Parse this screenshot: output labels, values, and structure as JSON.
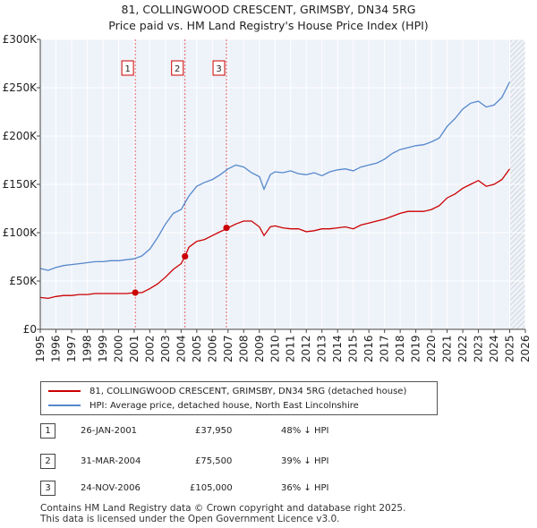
{
  "title_line1": "81, COLLINGWOOD CRESCENT, GRIMSBY, DN34 5RG",
  "title_line2": "Price paid vs. HM Land Registry's House Price Index (HPI)",
  "legend": {
    "property": "81, COLLINGWOOD CRESCENT, GRIMSBY, DN34 5RG (detached house)",
    "hpi": "HPI: Average price, detached house, North East Lincolnshire"
  },
  "transactions": [
    {
      "num": "1",
      "date": "26-JAN-2001",
      "price": "£37,950",
      "hpi_diff": "48% ↓ HPI"
    },
    {
      "num": "2",
      "date": "31-MAR-2004",
      "price": "£75,500",
      "hpi_diff": "39% ↓ HPI"
    },
    {
      "num": "3",
      "date": "24-NOV-2006",
      "price": "£105,000",
      "hpi_diff": "36% ↓ HPI"
    }
  ],
  "footer_line1": "Contains HM Land Registry data © Crown copyright and database right 2025.",
  "footer_line2": "This data is licensed under the Open Government Licence v3.0.",
  "chart_data": {
    "type": "line",
    "ylim": [
      0,
      300000
    ],
    "xlim": [
      1995,
      2026
    ],
    "y_ticks": [
      0,
      50000,
      100000,
      150000,
      200000,
      250000,
      300000
    ],
    "y_tick_labels": [
      "£0",
      "£50K",
      "£100K",
      "£150K",
      "£200K",
      "£250K",
      "£300K"
    ],
    "x_ticks": [
      1995,
      1996,
      1997,
      1998,
      1999,
      2000,
      2001,
      2002,
      2003,
      2004,
      2005,
      2006,
      2007,
      2008,
      2009,
      2010,
      2011,
      2012,
      2013,
      2014,
      2015,
      2016,
      2017,
      2018,
      2019,
      2020,
      2021,
      2022,
      2023,
      2024,
      2025,
      2026
    ],
    "grid": true,
    "future_hatch_from": 2025.0,
    "colors": {
      "property": "#cc0000",
      "hpi": "#5588cc",
      "marker_line": "#dd4444",
      "grid": "#dddddd",
      "bg": "#eef2f9"
    },
    "series": [
      {
        "key": "hpi",
        "x": [
          1995.0,
          1995.5,
          1996.0,
          1996.5,
          1997.0,
          1997.5,
          1998.0,
          1998.5,
          1999.0,
          1999.5,
          2000.0,
          2000.5,
          2001.0,
          2001.5,
          2002.0,
          2002.5,
          2003.0,
          2003.5,
          2004.0,
          2004.5,
          2005.0,
          2005.5,
          2006.0,
          2006.5,
          2007.0,
          2007.5,
          2008.0,
          2008.5,
          2009.0,
          2009.3,
          2009.7,
          2010.0,
          2010.5,
          2011.0,
          2011.5,
          2012.0,
          2012.5,
          2013.0,
          2013.5,
          2014.0,
          2014.5,
          2015.0,
          2015.5,
          2016.0,
          2016.5,
          2017.0,
          2017.5,
          2018.0,
          2018.5,
          2019.0,
          2019.5,
          2020.0,
          2020.5,
          2021.0,
          2021.5,
          2022.0,
          2022.5,
          2023.0,
          2023.5,
          2024.0,
          2024.5,
          2025.0
        ],
        "values": [
          63000,
          61000,
          64000,
          66000,
          67000,
          68000,
          69000,
          70000,
          70000,
          71000,
          71000,
          72000,
          73000,
          76000,
          83000,
          95000,
          109000,
          120000,
          124000,
          138000,
          148000,
          152000,
          155000,
          160000,
          166000,
          170000,
          168000,
          162000,
          158000,
          145000,
          160000,
          163000,
          162000,
          164000,
          161000,
          160000,
          162000,
          159000,
          163000,
          165000,
          166000,
          164000,
          168000,
          170000,
          172000,
          176000,
          182000,
          186000,
          188000,
          190000,
          191000,
          194000,
          198000,
          210000,
          218000,
          228000,
          234000,
          236000,
          230000,
          232000,
          240000,
          256000
        ]
      },
      {
        "key": "property",
        "x": [
          1995.0,
          1995.5,
          1996.0,
          1996.5,
          1997.0,
          1997.5,
          1998.0,
          1998.5,
          1999.0,
          1999.5,
          2000.0,
          2000.5,
          2001.07,
          2001.5,
          2002.0,
          2002.5,
          2003.0,
          2003.5,
          2004.0,
          2004.25,
          2004.5,
          2005.0,
          2005.5,
          2006.0,
          2006.5,
          2006.9,
          2007.0,
          2007.5,
          2008.0,
          2008.5,
          2009.0,
          2009.3,
          2009.7,
          2010.0,
          2010.5,
          2011.0,
          2011.5,
          2012.0,
          2012.5,
          2013.0,
          2013.5,
          2014.0,
          2014.5,
          2015.0,
          2015.5,
          2016.0,
          2016.5,
          2017.0,
          2017.5,
          2018.0,
          2018.5,
          2019.0,
          2019.5,
          2020.0,
          2020.5,
          2021.0,
          2021.5,
          2022.0,
          2022.5,
          2023.0,
          2023.5,
          2024.0,
          2024.5,
          2025.0
        ],
        "values": [
          33000,
          32000,
          34000,
          35000,
          35000,
          36000,
          36000,
          37000,
          37000,
          37000,
          37000,
          37000,
          37950,
          38000,
          42000,
          47000,
          54000,
          62000,
          68000,
          75500,
          85000,
          91000,
          93000,
          97000,
          101000,
          104000,
          105000,
          109000,
          112000,
          112000,
          106000,
          97000,
          106000,
          107000,
          105000,
          104000,
          104000,
          101000,
          102000,
          104000,
          104000,
          105000,
          106000,
          104000,
          108000,
          110000,
          112000,
          114000,
          117000,
          120000,
          122000,
          122000,
          122000,
          124000,
          128000,
          136000,
          140000,
          146000,
          150000,
          154000,
          148000,
          150000,
          155000,
          166000
        ]
      }
    ],
    "sales": [
      {
        "num": "1",
        "x": 2001.07,
        "value": 37950
      },
      {
        "num": "2",
        "x": 2004.25,
        "value": 75500
      },
      {
        "num": "3",
        "x": 2006.9,
        "value": 105000
      }
    ]
  }
}
